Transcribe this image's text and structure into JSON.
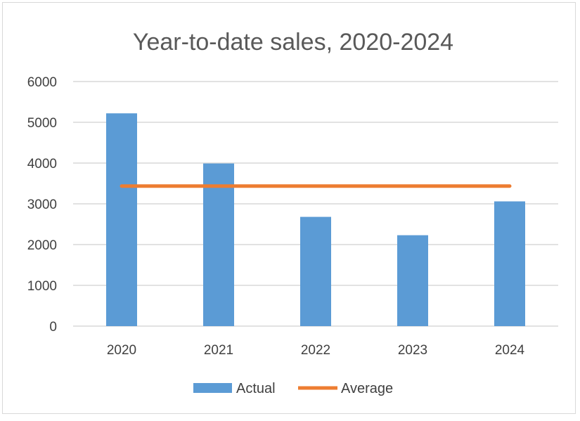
{
  "chart_data": {
    "type": "bar",
    "title": "Year-to-date sales, 2020-2024",
    "xlabel": "",
    "ylabel": "",
    "categories": [
      "2020",
      "2021",
      "2022",
      "2023",
      "2024"
    ],
    "series": [
      {
        "name": "Actual",
        "type": "bar",
        "values": [
          5220,
          3990,
          2680,
          2230,
          3060
        ],
        "color": "#5b9bd5"
      },
      {
        "name": "Average",
        "type": "line",
        "values": [
          3436,
          3436,
          3436,
          3436,
          3436
        ],
        "color": "#ed7d31"
      }
    ],
    "ylim": [
      0,
      6000
    ],
    "yticks": [
      0,
      1000,
      2000,
      3000,
      4000,
      5000,
      6000
    ],
    "yticklabels": [
      "0",
      "1000",
      "2000",
      "3000",
      "4000",
      "5000",
      "6000"
    ],
    "grid": true,
    "legend": "bottom",
    "gridline_color": "#d9d9d9"
  }
}
